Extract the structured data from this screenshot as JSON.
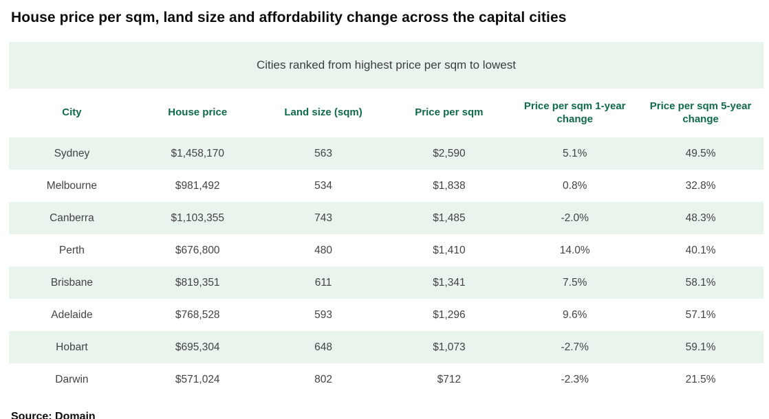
{
  "page": {
    "title": "House price per sqm, land size and affordability change across the capital cities",
    "banner_text": "Cities ranked from highest price per sqm to lowest",
    "source_text": "Source: Domain"
  },
  "colors": {
    "header_green": "#0f6b47",
    "row_green": "#e9f4ec",
    "body_text": "#434343",
    "title_text": "#0c0c0c"
  },
  "chart_data": {
    "type": "table",
    "title": "House price per sqm, land size and affordability change across the capital cities",
    "subtitle": "Cities ranked from highest price per sqm to lowest",
    "columns": [
      "City",
      "House price",
      "Land size (sqm)",
      "Price per sqm",
      "Price per sqm 1-year change",
      "Price per sqm 5-year change"
    ],
    "rows": [
      {
        "city": "Sydney",
        "house_price": "$1,458,170",
        "land_size": "563",
        "price_per_sqm": "$2,590",
        "change_1yr": "5.1%",
        "change_5yr": "49.5%"
      },
      {
        "city": "Melbourne",
        "house_price": "$981,492",
        "land_size": "534",
        "price_per_sqm": "$1,838",
        "change_1yr": "0.8%",
        "change_5yr": "32.8%"
      },
      {
        "city": "Canberra",
        "house_price": "$1,103,355",
        "land_size": "743",
        "price_per_sqm": "$1,485",
        "change_1yr": "-2.0%",
        "change_5yr": "48.3%"
      },
      {
        "city": "Perth",
        "house_price": "$676,800",
        "land_size": "480",
        "price_per_sqm": "$1,410",
        "change_1yr": "14.0%",
        "change_5yr": "40.1%"
      },
      {
        "city": "Brisbane",
        "house_price": "$819,351",
        "land_size": "611",
        "price_per_sqm": "$1,341",
        "change_1yr": "7.5%",
        "change_5yr": "58.1%"
      },
      {
        "city": "Adelaide",
        "house_price": "$768,528",
        "land_size": "593",
        "price_per_sqm": "$1,296",
        "change_1yr": "9.6%",
        "change_5yr": "57.1%"
      },
      {
        "city": "Hobart",
        "house_price": "$695,304",
        "land_size": "648",
        "price_per_sqm": "$1,073",
        "change_1yr": "-2.7%",
        "change_5yr": "59.1%"
      },
      {
        "city": "Darwin",
        "house_price": "$571,024",
        "land_size": "802",
        "price_per_sqm": "$712",
        "change_1yr": "-2.3%",
        "change_5yr": "21.5%"
      }
    ],
    "row_field_order": [
      "city",
      "house_price",
      "land_size",
      "price_per_sqm",
      "change_1yr",
      "change_5yr"
    ],
    "source": "Source: Domain",
    "layout_hints": {
      "striped_rows": "odd rows light green, even rows white",
      "header_text_color": "dark green",
      "all_cells_center_aligned": true
    }
  }
}
